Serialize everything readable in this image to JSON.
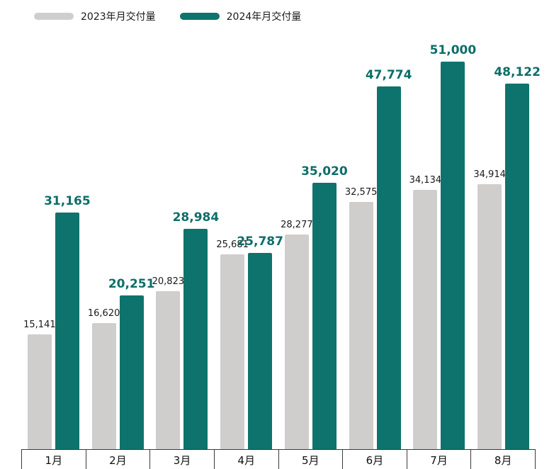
{
  "legend": {
    "series_2023_label": "2023年月交付量",
    "series_2024_label": "2024年月交付量"
  },
  "colors": {
    "series_2023": "#d0cecd",
    "series_2024": "#0e736d",
    "label_2023": "#1a1a1a",
    "label_2024": "#0c6e68",
    "axis": "#3a3a3a"
  },
  "chart_data": {
    "type": "bar",
    "title": "",
    "xlabel": "",
    "ylabel": "",
    "categories": [
      "1月",
      "2月",
      "3月",
      "4月",
      "5月",
      "6月",
      "7月",
      "8月"
    ],
    "series": [
      {
        "name": "2023年月交付量",
        "values": [
          15141,
          16620,
          20823,
          25681,
          28277,
          32575,
          34134,
          34914
        ]
      },
      {
        "name": "2024年月交付量",
        "values": [
          31165,
          20251,
          28984,
          25787,
          35020,
          47774,
          51000,
          48122
        ]
      }
    ],
    "ylim": [
      0,
      51000
    ],
    "grid": false,
    "legend_position": "top-left",
    "value_labels": true
  }
}
